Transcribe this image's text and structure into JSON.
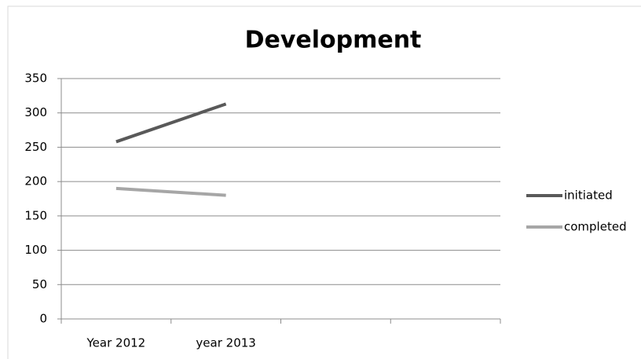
{
  "chart_data": {
    "type": "line",
    "title": "Development",
    "categories": [
      "Year 2012",
      "year 2013",
      null,
      null
    ],
    "series": [
      {
        "name": "initiated",
        "color": "#595959",
        "values": [
          258,
          313,
          null,
          null
        ]
      },
      {
        "name": "completed",
        "color": "#a6a6a6",
        "values": [
          190,
          180,
          null,
          null
        ]
      }
    ],
    "ylim": [
      0,
      350
    ],
    "yticks": [
      0,
      50,
      100,
      150,
      200,
      250,
      300,
      350
    ],
    "grid": true,
    "legend": "right"
  }
}
